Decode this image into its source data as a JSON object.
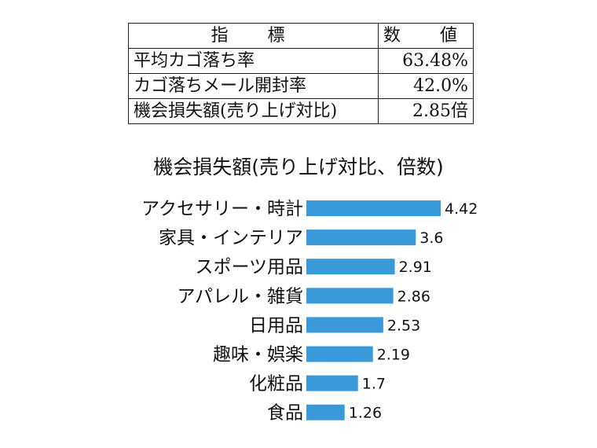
{
  "table": {
    "header": [
      "指　標",
      "数　値"
    ],
    "rows": [
      {
        "label": "平均カゴ落ち率",
        "value": "63.48%"
      },
      {
        "label": "カゴ落ちメール開封率",
        "value": "42.0%"
      },
      {
        "label": "機会損失額(売り上げ対比)",
        "value": "2.85倍"
      }
    ]
  },
  "chart_data": {
    "type": "bar",
    "orientation": "horizontal",
    "title": "機会損失額(売り上げ対比、倍数)",
    "categories": [
      "アクセサリー・時計",
      "家具・インテリア",
      "スポーツ用品",
      "アパレル・雑貨",
      "日用品",
      "趣味・娯楽",
      "化粧品",
      "食品"
    ],
    "values": [
      4.42,
      3.6,
      2.91,
      2.86,
      2.53,
      2.19,
      1.7,
      1.26
    ],
    "value_labels": [
      "4.42",
      "3.6",
      "2.91",
      "2.86",
      "2.53",
      "2.19",
      "1.7",
      "1.26"
    ],
    "xlim": [
      0,
      4.42
    ],
    "xlabel": "",
    "ylabel": "",
    "grid": false,
    "bar_color": "#3a9ad9"
  }
}
